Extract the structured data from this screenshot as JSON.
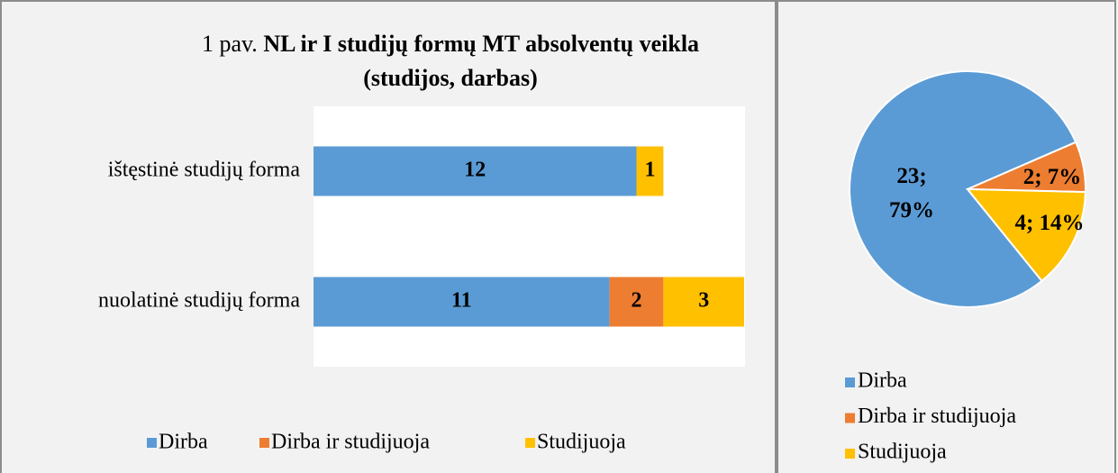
{
  "chart_data": [
    {
      "type": "stacked-bar-horizontal",
      "title": "1 pav.",
      "title_bold": "NL ir I studijų formų MT absolventų veikla (studijos, darbas)",
      "categories": [
        "ištęstinė studijų forma",
        "nuolatinė studijų forma"
      ],
      "series": [
        {
          "name": "Dirba",
          "color": "#5b9bd5",
          "values": [
            12,
            11
          ]
        },
        {
          "name": "Dirba ir studijuoja",
          "color": "#ed7d31",
          "values": [
            null,
            2
          ]
        },
        {
          "name": "Studijuoja",
          "color": "#ffc000",
          "values": [
            1,
            3
          ]
        }
      ],
      "xlim": [
        0,
        16
      ],
      "legend": "bottom"
    },
    {
      "type": "pie",
      "categories": [
        "Dirba",
        "Dirba ir studijuoja",
        "Studijuoja"
      ],
      "values": [
        23,
        2,
        4
      ],
      "value_labels": [
        "23; 79%",
        "2; 7%",
        "4; 14%"
      ],
      "colors": [
        "#5b9bd5",
        "#ed7d31",
        "#ffc000"
      ],
      "legend": "bottom"
    }
  ]
}
